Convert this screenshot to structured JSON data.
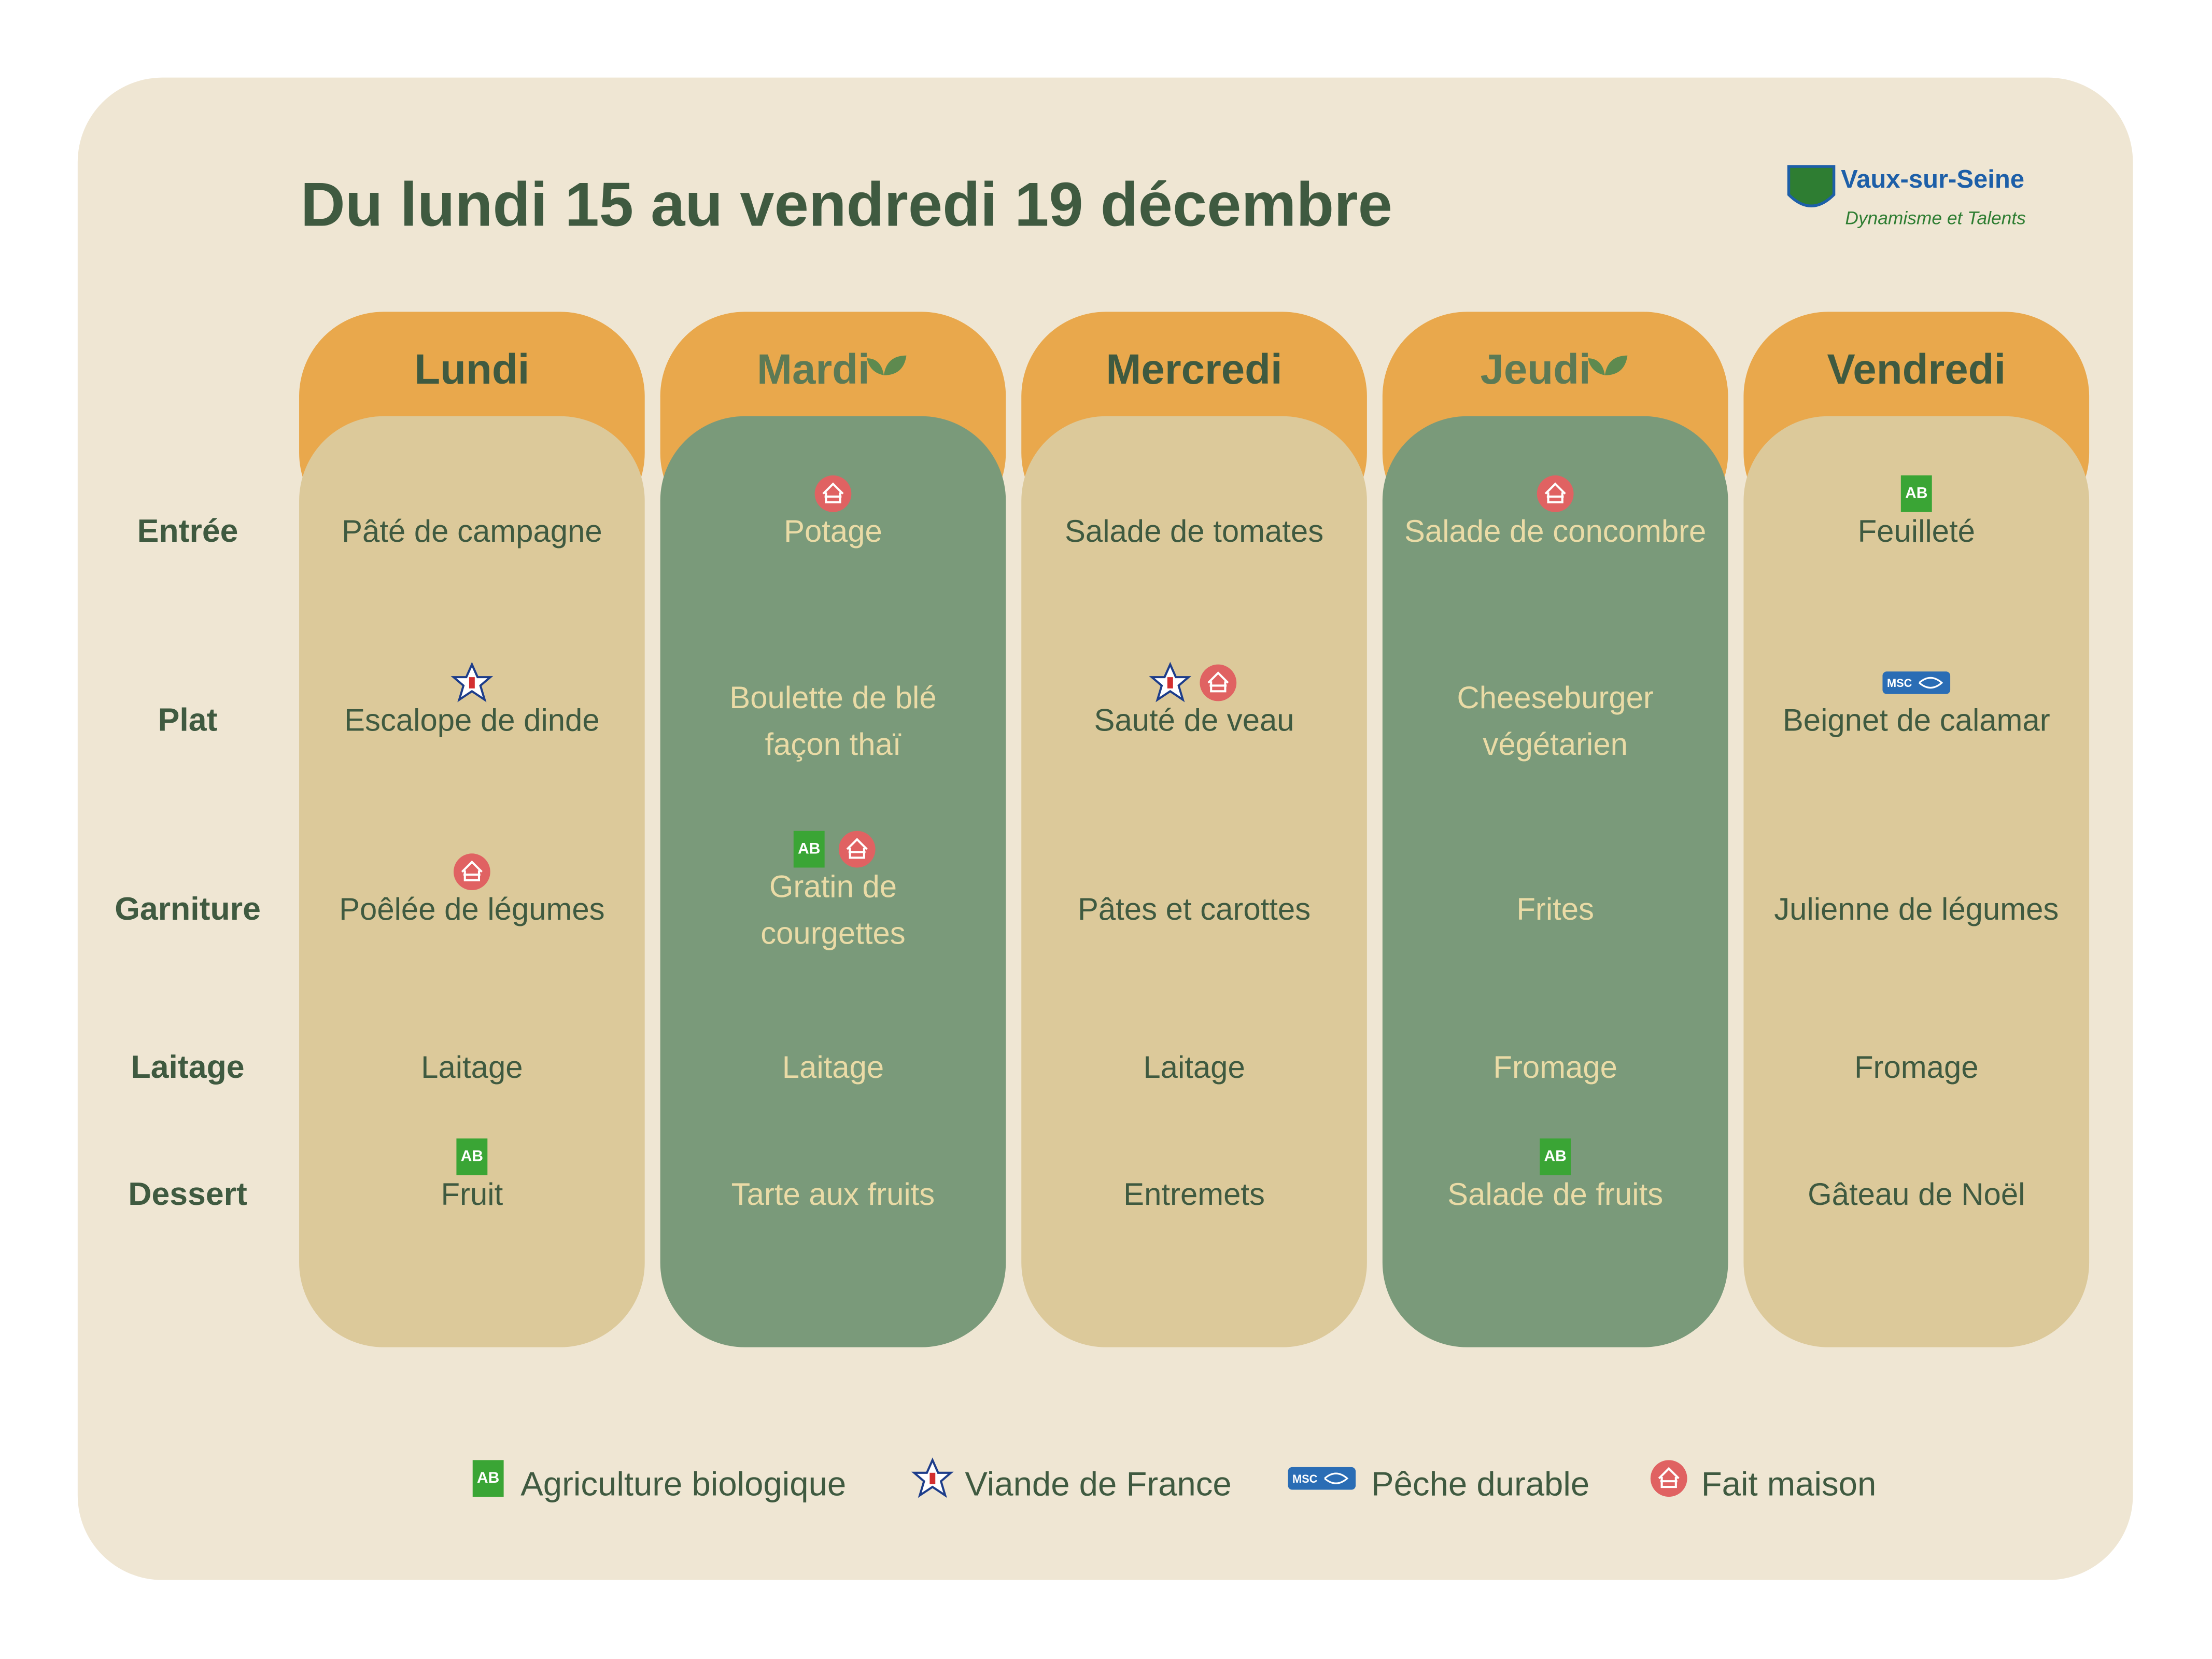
{
  "header": {
    "title": "Du lundi 15 au vendredi 19 décembre"
  },
  "logo": {
    "name": "Vaux-sur-Seine",
    "tagline": "Dynamisme et Talents"
  },
  "rows": [
    "Entrée",
    "Plat",
    "Garniture",
    "Laitage",
    "Dessert"
  ],
  "days": [
    {
      "name": "Lundi",
      "vegetarian": false,
      "items": [
        {
          "lines": [
            "Pâté de campagne"
          ],
          "labels": []
        },
        {
          "lines": [
            "Escalope de dinde"
          ],
          "labels": [
            "vdf"
          ]
        },
        {
          "lines": [
            "Poêlée de légumes"
          ],
          "labels": [
            "maison"
          ]
        },
        {
          "lines": [
            "Laitage"
          ],
          "labels": []
        },
        {
          "lines": [
            "Fruit"
          ],
          "labels": [
            "bio"
          ]
        }
      ]
    },
    {
      "name": "Mardi",
      "vegetarian": true,
      "items": [
        {
          "lines": [
            "Potage"
          ],
          "labels": [
            "maison"
          ]
        },
        {
          "lines": [
            "Boulette de blé",
            "façon thaï"
          ],
          "labels": []
        },
        {
          "lines": [
            "Gratin de",
            "courgettes"
          ],
          "labels": [
            "bio",
            "maison"
          ]
        },
        {
          "lines": [
            "Laitage"
          ],
          "labels": []
        },
        {
          "lines": [
            "Tarte aux fruits"
          ],
          "labels": []
        }
      ]
    },
    {
      "name": "Mercredi",
      "vegetarian": false,
      "items": [
        {
          "lines": [
            "Salade de tomates"
          ],
          "labels": []
        },
        {
          "lines": [
            "Sauté de veau"
          ],
          "labels": [
            "vdf",
            "maison"
          ]
        },
        {
          "lines": [
            "Pâtes et carottes"
          ],
          "labels": []
        },
        {
          "lines": [
            "Laitage"
          ],
          "labels": []
        },
        {
          "lines": [
            "Entremets"
          ],
          "labels": []
        }
      ]
    },
    {
      "name": "Jeudi",
      "vegetarian": true,
      "items": [
        {
          "lines": [
            "Salade de concombre"
          ],
          "labels": [
            "maison"
          ]
        },
        {
          "lines": [
            "Cheeseburger",
            "végétarien"
          ],
          "labels": []
        },
        {
          "lines": [
            "Frites"
          ],
          "labels": []
        },
        {
          "lines": [
            "Fromage"
          ],
          "labels": []
        },
        {
          "lines": [
            "Salade de fruits"
          ],
          "labels": [
            "bio"
          ]
        }
      ]
    },
    {
      "name": "Vendredi",
      "vegetarian": false,
      "items": [
        {
          "lines": [
            "Feuilleté"
          ],
          "labels": [
            "bio"
          ]
        },
        {
          "lines": [
            "Beignet de calamar"
          ],
          "labels": [
            "msc"
          ]
        },
        {
          "lines": [
            "Julienne de légumes"
          ],
          "labels": []
        },
        {
          "lines": [
            "Fromage"
          ],
          "labels": []
        },
        {
          "lines": [
            "Gâteau de Noël"
          ],
          "labels": []
        }
      ]
    }
  ],
  "legend": {
    "bio": {
      "mark": "AB",
      "text": "Agriculture biologique"
    },
    "vdf": {
      "text": "Viande de France"
    },
    "msc": {
      "mark": "MSC",
      "text": "Pêche durable"
    },
    "maison": {
      "text": "Fait maison"
    }
  }
}
